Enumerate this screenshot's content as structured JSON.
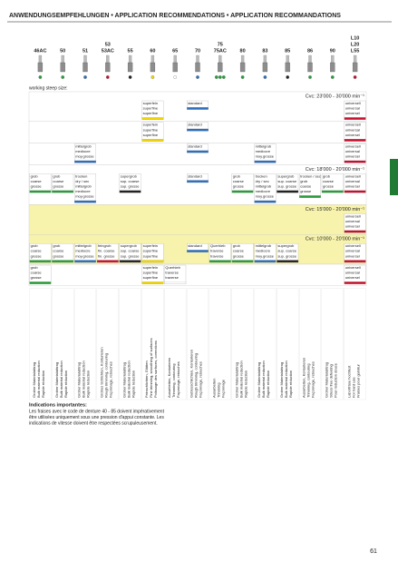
{
  "header": {
    "title": "ANWENDUNGSEMPFEHLUNGEN • APPLICATION RECOMMENDATIONS • APPLICATION RECOMMANDATIONS"
  },
  "columns": [
    {
      "code": [
        "46AC"
      ],
      "dots": [
        "#2a9d3a"
      ],
      "desc": [
        "Grober Materialabtrag",
        "Bulk material reduction",
        "Rapide réduction"
      ]
    },
    {
      "code": [
        "50"
      ],
      "dots": [
        "#2a9d3a"
      ],
      "desc": [
        "Grober Materialabtrag",
        "Bulk material reduction",
        "Rapide réduction"
      ]
    },
    {
      "code": [
        "51"
      ],
      "dots": [
        "#2e6fbd"
      ],
      "desc": [
        "Grober Materialabtrag",
        "Bulk material reduction",
        "Rapide réduction"
      ]
    },
    {
      "code": [
        "53",
        "53AC"
      ],
      "dots": [
        "#c8102e"
      ],
      "desc": [
        "Grobes Schlichten, Konturieren",
        "Rough trimming, contouring",
        "Façonnage, retouches"
      ]
    },
    {
      "code": [
        "55"
      ],
      "dots": [
        "#222222"
      ],
      "desc": [
        "Grober Materialabtrag",
        "Bulk material reduction",
        "Rapide réduction"
      ]
    },
    {
      "code": [
        "60"
      ],
      "dots": [
        "#f2d600"
      ],
      "desc": [
        "Feinschlichten, Glätten",
        "Fine trimming, smoothing of surfaces",
        "Polissage des surfaces, corrections"
      ]
    },
    {
      "code": [
        "65"
      ],
      "dots": [
        "#ffffff"
      ],
      "desc": [
        "Ausarbeiten, Konturieren",
        "Trimming, contouring",
        "Façonnage, retouches"
      ]
    },
    {
      "code": [
        "70"
      ],
      "dots": [
        "#2e6fbd"
      ],
      "desc": [
        "Gebissschlichten, Konturieren",
        "Rough trimming, contouring",
        "Façonnage, retouches"
      ]
    },
    {
      "code": [
        "75",
        "75AC"
      ],
      "dots": [
        "#2a9d3a",
        "#2a9d3a",
        "#2a9d3a"
      ],
      "desc": [
        "Ausarbeiten",
        "Trimming",
        "Façonnage"
      ]
    },
    {
      "code": [
        "80"
      ],
      "dots": [
        "#2a9d3a"
      ],
      "desc": [
        "Grober Materialabtrag",
        "Bulk material reduction",
        "Rapide réduction"
      ]
    },
    {
      "code": [
        "83"
      ],
      "dots": [
        "#2e6fbd"
      ],
      "desc": [
        "Grober Materialabtrag",
        "Bulk material reduction",
        "Rapide réduction"
      ]
    },
    {
      "code": [
        "85"
      ],
      "dots": [
        "#222222"
      ],
      "desc": [
        "Grober Materialabtrag",
        "Bulk material reduction",
        "Rapide réduction"
      ]
    },
    {
      "code": [
        "86"
      ],
      "dots": [
        "#2a9d3a"
      ],
      "desc": [
        "Ausarbeiten, Konturieren",
        "Trimming, contouring",
        "Façonnage, retouches"
      ]
    },
    {
      "code": [
        "90"
      ],
      "dots": [
        "#2a9d3a"
      ],
      "desc": [
        "Grober Materialabtrag",
        "Stress free defeating",
        "Pour réduction douce"
      ]
    },
    {
      "code": [
        "L10",
        "L20",
        "L55"
      ],
      "dots": [
        "#c8102e"
      ],
      "desc": [
        "Laborfräse hochfest",
        "For hard use",
        "Fraises pour garnitur"
      ]
    }
  ],
  "working_size": "working steep size:",
  "sections": [
    {
      "speed": "Cvc: 23'000 - 30'000 min⁻¹",
      "bg": "#ffffff",
      "cells": [
        null,
        null,
        null,
        null,
        null,
        {
          "lines": [
            "superfein",
            "superfine",
            "superfine"
          ],
          "color": "#f2d600"
        },
        null,
        {
          "lines": [
            "standard"
          ],
          "color": "#2e6fbd"
        },
        null,
        null,
        null,
        null,
        null,
        null,
        {
          "lines": [
            "universell",
            "universal",
            "universel"
          ],
          "color": "#c8102e"
        }
      ]
    },
    {
      "bg": "#ffffff",
      "cells": [
        null,
        null,
        null,
        null,
        null,
        {
          "lines": [
            "superfein",
            "superfine",
            "superfine"
          ],
          "color": "#f2d600"
        },
        null,
        {
          "lines": [
            "standard"
          ],
          "color": "#2e6fbd"
        },
        null,
        null,
        null,
        null,
        null,
        null,
        {
          "lines": [
            "universell",
            "universal",
            "universel"
          ],
          "color": "#c8102e"
        }
      ]
    },
    {
      "bg": "#ffffff",
      "cells": [
        null,
        null,
        {
          "lines": [
            "mittelgrob",
            "mediocre",
            "moy.grosse"
          ],
          "color": "#2e6fbd"
        },
        null,
        null,
        null,
        null,
        {
          "lines": [
            "standard"
          ],
          "color": "#2e6fbd"
        },
        null,
        null,
        {
          "lines": [
            "mittelgrob",
            "mediocre",
            "moy.grosse"
          ],
          "color": "#2e6fbd"
        },
        null,
        null,
        null,
        {
          "lines": [
            "universell",
            "universal",
            "universel"
          ],
          "color": "#c8102e"
        }
      ]
    },
    {
      "speed": "Cvc: 18'000 - 20'000 min⁻¹",
      "bg": "#ffffff",
      "cells": [
        {
          "lines": [
            "grob",
            "coarse",
            "grosse"
          ],
          "color": "#2a9d3a"
        },
        {
          "lines": [
            "grob",
            "coarse",
            "grosse"
          ],
          "color": "#2a9d3a"
        },
        {
          "lines": [
            "trocken",
            "dry / sec",
            "mittelgrob",
            "mediocre",
            "moy.grosse"
          ],
          "color": "#2e6fbd"
        },
        null,
        {
          "lines": [
            "supergrob",
            "sup. coarse",
            "sup. grosse"
          ],
          "color": "#222222"
        },
        null,
        null,
        {
          "lines": [
            "standard"
          ],
          "color": "#2e6fbd"
        },
        null,
        {
          "lines": [
            "grob",
            "coarse",
            "grosse"
          ],
          "color": "#2a9d3a"
        },
        {
          "lines": [
            "trocken",
            "dry / sec",
            "mittelgrob",
            "mediocre",
            "moy.grosse"
          ],
          "color": "#2e6fbd"
        },
        {
          "lines": [
            "supergrob",
            "sup. coarse",
            "sup. grosse"
          ],
          "color": "#222222"
        },
        {
          "lines": [
            "trocken / sec",
            "grob",
            "coarse",
            "grosse"
          ],
          "color": "#2a9d3a"
        },
        {
          "lines": [
            "grob",
            "coarse",
            "grosse"
          ],
          "color": "#2a9d3a"
        },
        {
          "lines": [
            "universell",
            "universal",
            "universel"
          ],
          "color": "#c8102e"
        }
      ]
    },
    {
      "speed": "Cvc: 15'000 - 20'000 min⁻¹",
      "bg": "#f7f3ac",
      "cells": [
        null,
        null,
        null,
        null,
        null,
        null,
        null,
        null,
        null,
        null,
        null,
        null,
        null,
        null,
        {
          "lines": [
            "universell",
            "universal",
            "universel"
          ],
          "color": "#c8102e"
        }
      ]
    },
    {
      "speed": "Cvc: 10'000 - 20'000 min⁻¹",
      "bg": "#f7f3ac",
      "cells": [
        {
          "lines": [
            "grob",
            "coarse",
            "grosse"
          ],
          "color": "#2a9d3a"
        },
        {
          "lines": [
            "grob",
            "coarse",
            "grosse"
          ],
          "color": "#2a9d3a"
        },
        {
          "lines": [
            "mittelgrob",
            "mediocre",
            "moy.grosse"
          ],
          "color": "#2e6fbd"
        },
        {
          "lines": [
            "feingrob",
            "fin. coarse",
            "fin. grosse"
          ],
          "color": "#c8102e"
        },
        {
          "lines": [
            "supergrob",
            "sup. coarse",
            "sup. grosse"
          ],
          "color": "#222222"
        },
        {
          "lines": [
            "superfein",
            "superfine",
            "superfine"
          ],
          "color": "#f2d600"
        },
        null,
        {
          "lines": [
            "standard"
          ],
          "color": "#2e6fbd"
        },
        {
          "lines": [
            "Querhieb",
            "traverse",
            "traverse"
          ],
          "color": "#2a9d3a"
        },
        {
          "lines": [
            "grob",
            "coarse",
            "grosse"
          ],
          "color": "#2a9d3a"
        },
        {
          "lines": [
            "mittelgrob",
            "mediocre",
            "moy.grosse"
          ],
          "color": "#2e6fbd"
        },
        {
          "lines": [
            "supergrob",
            "sup. coarse",
            "sup. grosse"
          ],
          "color": "#222222"
        },
        null,
        null,
        {
          "lines": [
            "universell",
            "universal",
            "universel"
          ],
          "color": "#c8102e"
        }
      ]
    },
    {
      "bg": "#ffffff",
      "cells": [
        {
          "lines": [
            "grob",
            "coarse",
            "grosse"
          ],
          "color": "#2a9d3a"
        },
        null,
        null,
        null,
        null,
        {
          "lines": [
            "superfein",
            "superfine",
            "superfine"
          ],
          "color": "#f2d600"
        },
        {
          "lines": [
            "Querhieb",
            "traverse",
            "traverse"
          ],
          "color": "#ffffff"
        },
        null,
        null,
        null,
        null,
        null,
        null,
        null,
        {
          "lines": [
            "universell",
            "universal",
            "universel"
          ],
          "color": "#c8102e"
        }
      ]
    }
  ],
  "indications": {
    "title": "Indications importantes:",
    "lines": [
      "Les fraises avec le code de denture 40 - 85 doivent impérativement",
      "être utilisées uniquement sous une pression d'appui constante. Les",
      "indications de vitesse doivent être respectées scrupuleusement."
    ]
  },
  "page_number": "61"
}
